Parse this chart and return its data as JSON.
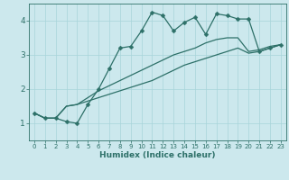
{
  "xlabel": "Humidex (Indice chaleur)",
  "bg_color": "#cce8ed",
  "line_color": "#2d7068",
  "grid_color": "#a8d4da",
  "xlim": [
    -0.5,
    23.5
  ],
  "ylim": [
    0.5,
    4.5
  ],
  "yticks": [
    1,
    2,
    3,
    4
  ],
  "xticks": [
    0,
    1,
    2,
    3,
    4,
    5,
    6,
    7,
    8,
    9,
    10,
    11,
    12,
    13,
    14,
    15,
    16,
    17,
    18,
    19,
    20,
    21,
    22,
    23
  ],
  "line1_x": [
    0,
    1,
    2,
    3,
    4,
    5,
    6,
    7,
    8,
    9,
    10,
    11,
    12,
    13,
    14,
    15,
    16,
    17,
    18,
    19,
    20,
    21,
    22,
    23
  ],
  "line1_y": [
    1.3,
    1.15,
    1.15,
    1.05,
    1.0,
    1.55,
    2.0,
    2.6,
    3.2,
    3.25,
    3.7,
    4.25,
    4.15,
    3.7,
    3.95,
    4.1,
    3.6,
    4.2,
    4.15,
    4.05,
    4.05,
    3.1,
    3.2,
    3.3
  ],
  "line2_x": [
    0,
    1,
    2,
    3,
    4,
    5,
    6,
    7,
    8,
    9,
    10,
    11,
    12,
    13,
    14,
    15,
    16,
    17,
    18,
    19,
    20,
    21,
    22,
    23
  ],
  "line2_y": [
    1.3,
    1.15,
    1.15,
    1.5,
    1.55,
    1.75,
    1.95,
    2.1,
    2.25,
    2.4,
    2.55,
    2.7,
    2.85,
    3.0,
    3.1,
    3.2,
    3.35,
    3.45,
    3.5,
    3.5,
    3.1,
    3.15,
    3.25,
    3.3
  ],
  "line3_x": [
    0,
    1,
    2,
    3,
    4,
    5,
    6,
    7,
    8,
    9,
    10,
    11,
    12,
    13,
    14,
    15,
    16,
    17,
    18,
    19,
    20,
    21,
    22,
    23
  ],
  "line3_y": [
    1.3,
    1.15,
    1.15,
    1.5,
    1.55,
    1.65,
    1.75,
    1.85,
    1.95,
    2.05,
    2.15,
    2.25,
    2.4,
    2.55,
    2.7,
    2.8,
    2.9,
    3.0,
    3.1,
    3.2,
    3.05,
    3.1,
    3.2,
    3.3
  ],
  "markersize": 2.5,
  "linewidth": 0.9
}
